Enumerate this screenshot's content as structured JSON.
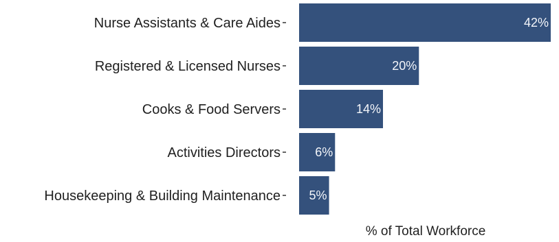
{
  "chart_data": {
    "type": "bar",
    "orientation": "horizontal",
    "title": "",
    "xlabel": "% of Total Workforce",
    "ylabel": "",
    "xlim": [
      0,
      42
    ],
    "grid": false,
    "legend": "none",
    "bar_color": "#34517c",
    "categories": [
      "Nurse Assistants & Care Aides",
      "Registered & Licensed Nurses",
      "Cooks & Food Servers",
      "Activities Directors",
      "Housekeeping & Building Maintenance"
    ],
    "values": [
      42,
      20,
      14,
      6,
      5
    ],
    "data_labels": [
      "42%",
      "20%",
      "14%",
      "6%",
      "5%"
    ]
  }
}
